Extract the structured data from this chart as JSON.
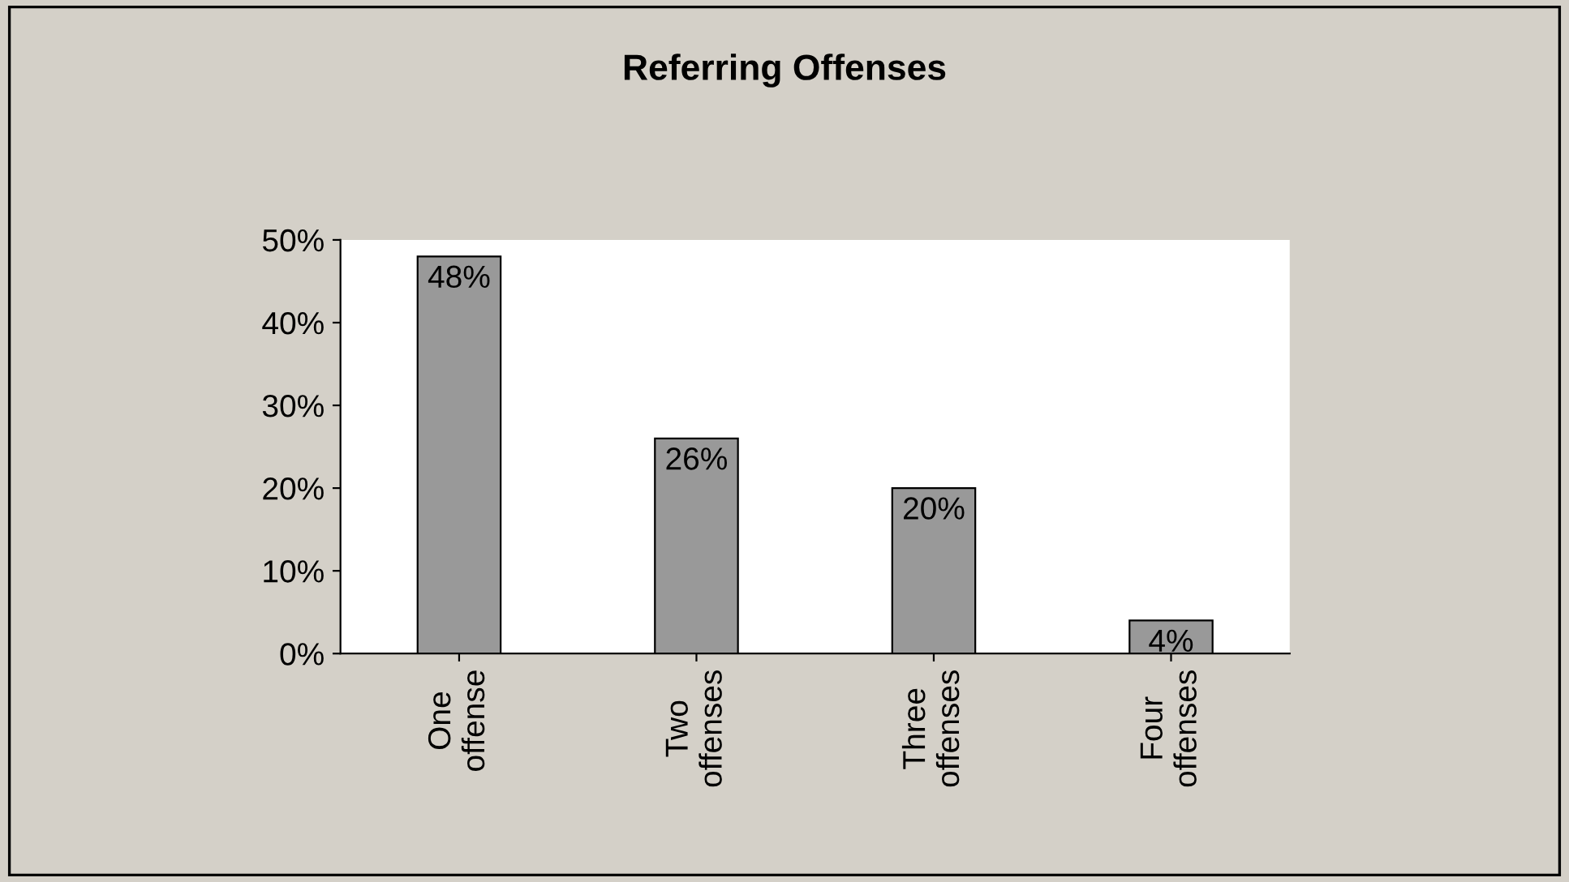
{
  "chart_data": {
    "type": "bar",
    "title": "Referring Offenses",
    "categories": [
      "One\noffense",
      "Two\noffenses",
      "Three\noffenses",
      "Four\noffenses"
    ],
    "values": [
      48,
      26,
      20,
      4
    ],
    "color": "#999999",
    "value_labels": [
      "48%",
      "26%",
      "20%",
      "4%"
    ],
    "ylim": [
      0,
      50
    ],
    "yticks": [
      {
        "value": 0,
        "label": "0%"
      },
      {
        "value": 10,
        "label": "10%"
      },
      {
        "value": 20,
        "label": "20%"
      },
      {
        "value": 30,
        "label": "30%"
      },
      {
        "value": 40,
        "label": "40%"
      },
      {
        "value": 50,
        "label": "50%"
      }
    ],
    "grid": false,
    "legend": false
  }
}
